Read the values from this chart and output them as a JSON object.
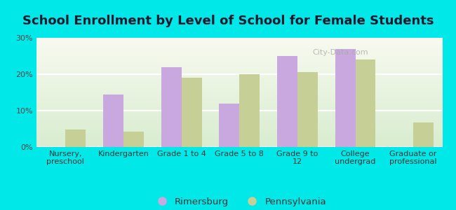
{
  "title": "School Enrollment by Level of School for Female Students",
  "categories": [
    "Nursery,\npreschool",
    "Kindergarten",
    "Grade 1 to 4",
    "Grade 5 to 8",
    "Grade 9 to\n12",
    "College\nundergrad",
    "Graduate or\nprofessional"
  ],
  "rimersburg": [
    0,
    14.5,
    22,
    12,
    25,
    27,
    0
  ],
  "pennsylvania": [
    4.8,
    4.2,
    19,
    20,
    20.5,
    24,
    6.8
  ],
  "rimersburg_color": "#c9a8df",
  "pennsylvania_color": "#c5cf96",
  "background_color": "#00e8e8",
  "ylim": [
    0,
    30
  ],
  "yticks": [
    0,
    10,
    20,
    30
  ],
  "legend_labels": [
    "Rimersburg",
    "Pennsylvania"
  ],
  "title_fontsize": 13,
  "tick_fontsize": 8,
  "legend_fontsize": 9.5,
  "watermark": "City-Data.com"
}
